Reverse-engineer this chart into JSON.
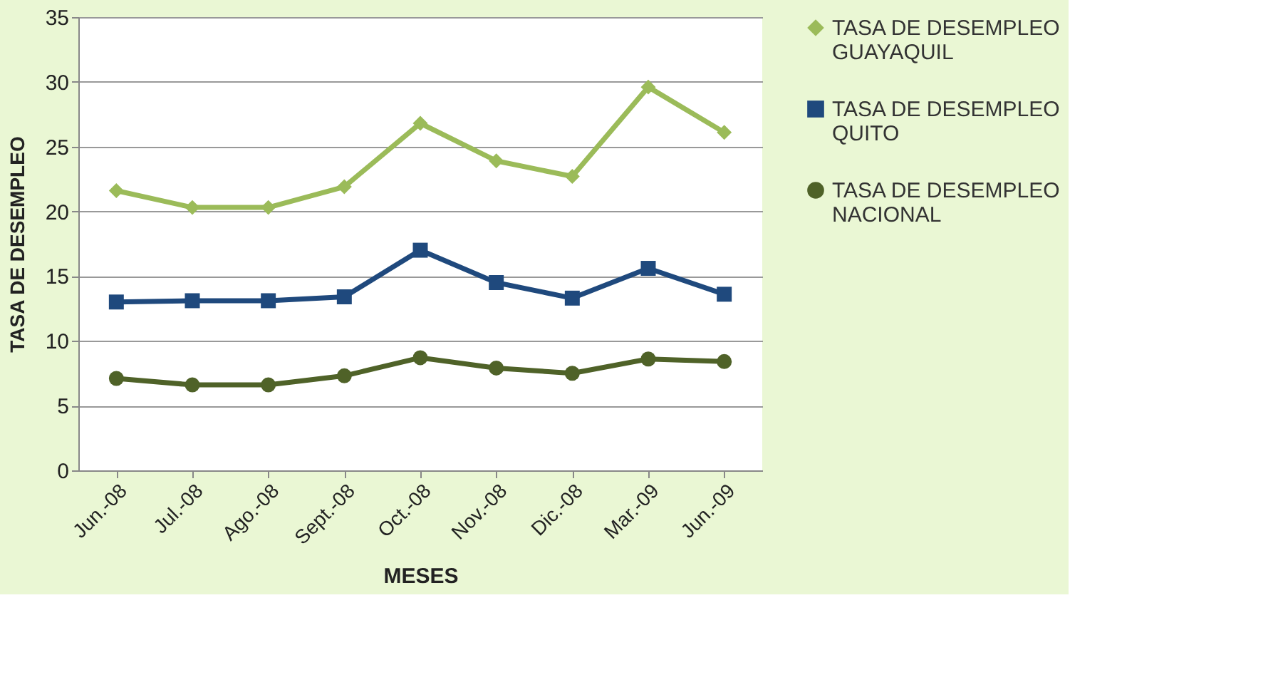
{
  "chart_data": {
    "type": "line",
    "xlabel": "MESES",
    "ylabel": "TASA DE DESEMPLEO",
    "categories": [
      "Jun.-08",
      "Jul.-08",
      "Ago.-08",
      "Sept.-08",
      "Oct.-08",
      "Nov.-08",
      "Dic.-08",
      "Mar.-09",
      "Jun.-09"
    ],
    "series": [
      {
        "name": "TASA DE DESEMPLEO GUAYAQUIL",
        "color": "#9bbb59",
        "marker": "diamond",
        "values": [
          21.6,
          20.3,
          20.3,
          21.9,
          26.8,
          23.9,
          22.7,
          29.6,
          26.1
        ]
      },
      {
        "name": "TASA DE DESEMPLEO QUITO",
        "color": "#1f497d",
        "marker": "square",
        "values": [
          13.0,
          13.1,
          13.1,
          13.4,
          17.0,
          14.5,
          13.3,
          15.6,
          13.6
        ]
      },
      {
        "name": "TASA DE DESEMPLEO NACIONAL",
        "color": "#4f6228",
        "marker": "circle",
        "values": [
          7.1,
          6.6,
          6.6,
          7.3,
          8.7,
          7.9,
          7.5,
          8.6,
          8.4
        ]
      }
    ],
    "ylim": [
      0,
      35
    ],
    "yticks": [
      0,
      5,
      10,
      15,
      20,
      25,
      30,
      35
    ],
    "grid": "y",
    "legend": "right"
  }
}
